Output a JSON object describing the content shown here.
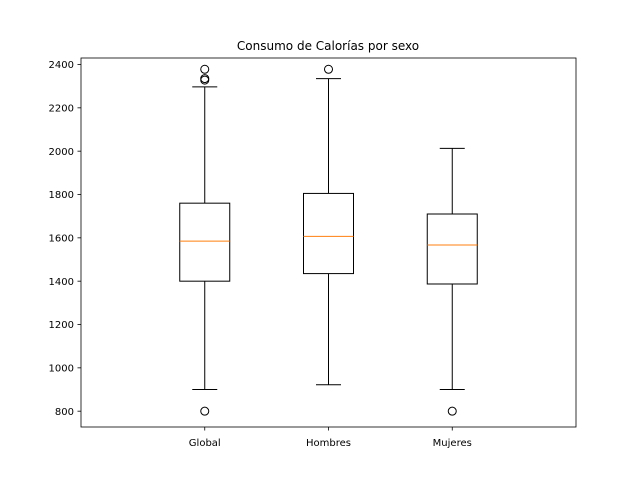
{
  "chart_data": {
    "type": "box",
    "title": "Consumo de Calorías por sexo",
    "xlabel": "",
    "ylabel": "",
    "ylim": [
      727,
      2430
    ],
    "yticks": [
      800,
      1000,
      1200,
      1400,
      1600,
      1800,
      2000,
      2200,
      2400
    ],
    "grid": false,
    "colors": {
      "box": "#000000",
      "median": "#ff7f0e",
      "frame": "#000000"
    },
    "categories": [
      "Global",
      "Hombres",
      "Mujeres"
    ],
    "boxes": [
      {
        "label": "Global",
        "whislo": 900,
        "q1": 1400,
        "med": 1585,
        "q3": 1760,
        "whishi": 2297,
        "fliers": [
          800,
          2328,
          2335,
          2378
        ]
      },
      {
        "label": "Hombres",
        "whislo": 922,
        "q1": 1435,
        "med": 1607,
        "q3": 1805,
        "whishi": 2335,
        "fliers": [
          2378
        ]
      },
      {
        "label": "Mujeres",
        "whislo": 900,
        "q1": 1387,
        "med": 1567,
        "q3": 1710,
        "whishi": 2013,
        "fliers": [
          800
        ]
      }
    ]
  }
}
